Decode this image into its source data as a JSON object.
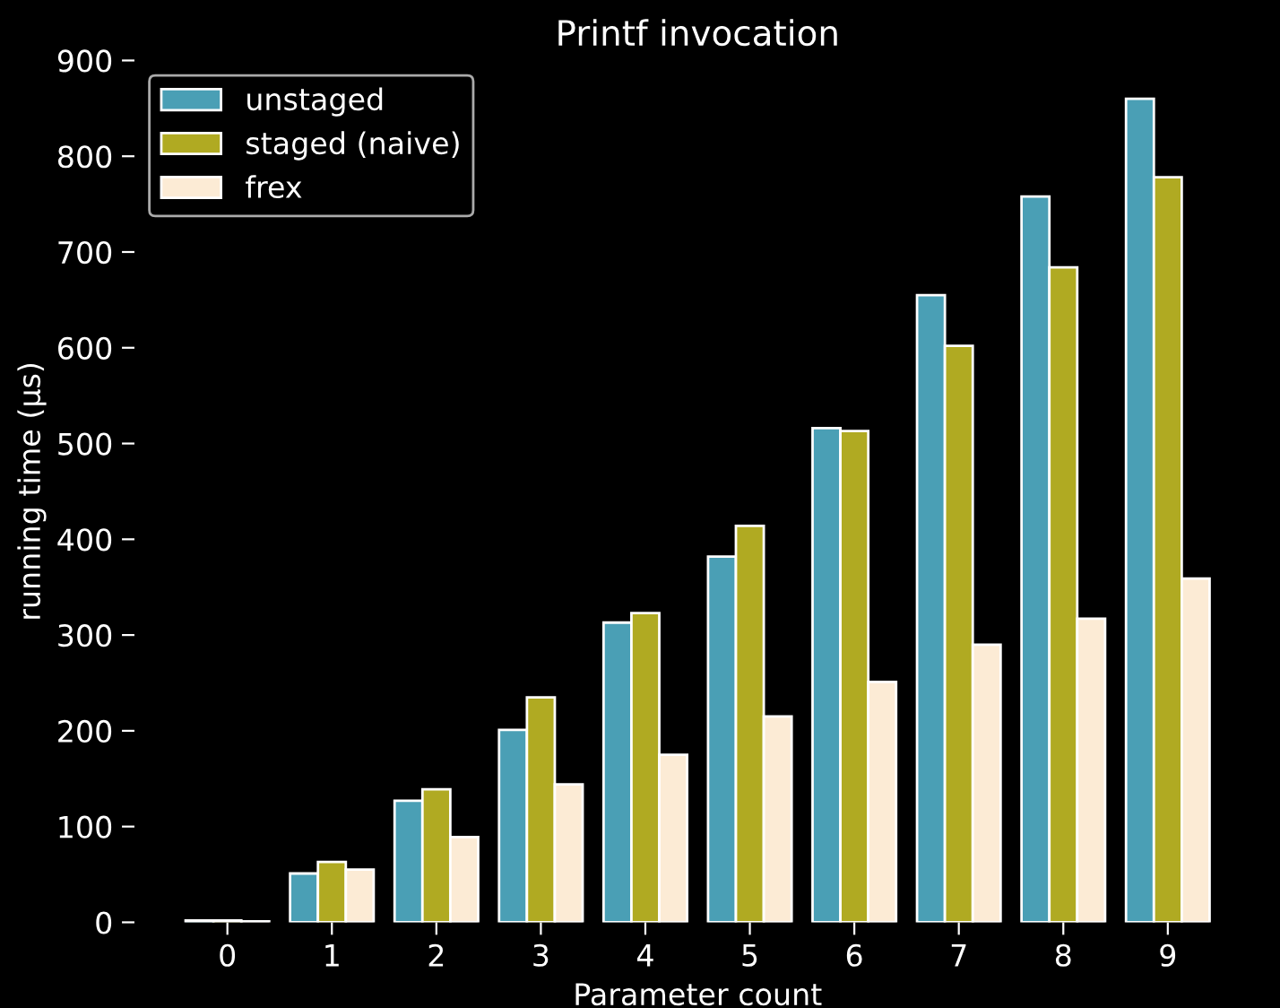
{
  "chart_data": {
    "type": "bar",
    "title": "Printf invocation",
    "xlabel": "Parameter count",
    "ylabel": "running time (μs)",
    "categories": [
      "0",
      "1",
      "2",
      "3",
      "4",
      "5",
      "6",
      "7",
      "8",
      "9"
    ],
    "series": [
      {
        "name": "unstaged",
        "color": "#4a9fb5",
        "values": [
          2,
          51,
          127,
          201,
          313,
          382,
          516,
          655,
          758,
          860
        ]
      },
      {
        "name": "staged (naive)",
        "color": "#b0aa22",
        "values": [
          2,
          63,
          139,
          235,
          323,
          414,
          513,
          602,
          684,
          778
        ]
      },
      {
        "name": "frex",
        "color": "#fcebd5",
        "values": [
          1,
          55,
          89,
          144,
          175,
          215,
          251,
          290,
          317,
          359
        ]
      }
    ],
    "ylim": [
      0,
      900
    ],
    "yticks": [
      0,
      100,
      200,
      300,
      400,
      500,
      600,
      700,
      800,
      900
    ],
    "grid": false,
    "legend": "top left"
  }
}
